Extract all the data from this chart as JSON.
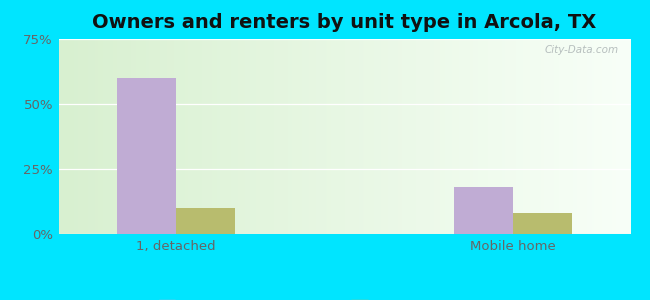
{
  "title": "Owners and renters by unit type in Arcola, TX",
  "categories": [
    "1, detached",
    "Mobile home"
  ],
  "owner_values": [
    60.0,
    18.0
  ],
  "renter_values": [
    10.0,
    8.0
  ],
  "owner_color": "#c0acd4",
  "renter_color": "#b8bc6e",
  "ylim": [
    0,
    75
  ],
  "yticks": [
    0,
    25,
    50,
    75
  ],
  "yticklabels": [
    "0%",
    "25%",
    "50%",
    "75%"
  ],
  "bar_width": 0.35,
  "group_positions": [
    1.0,
    3.0
  ],
  "outer_bg": "#00e5ff",
  "plot_bg_left": "#d8f0d0",
  "plot_bg_right": "#f0fdf5",
  "watermark": "City-Data.com",
  "title_fontsize": 14,
  "tick_fontsize": 9.5,
  "legend_fontsize": 10,
  "xlim": [
    0.3,
    3.7
  ]
}
